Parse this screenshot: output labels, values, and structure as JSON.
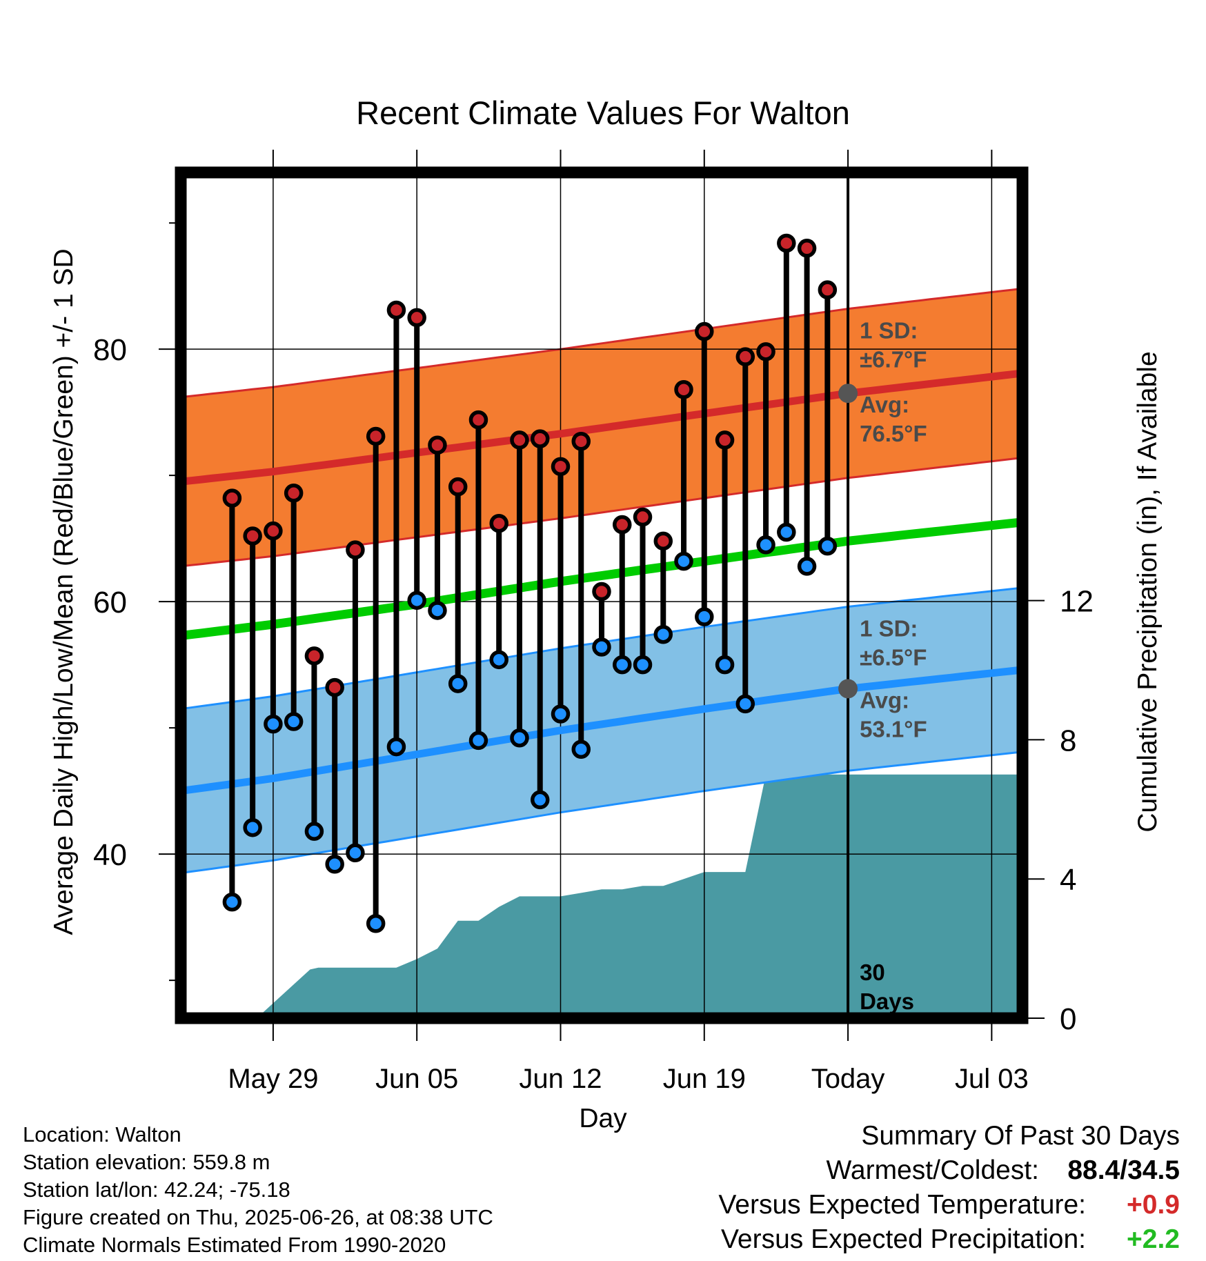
{
  "chart_data": {
    "type": "line",
    "title": "Recent Climate Values For Walton",
    "xlabel": "Day",
    "ylabel": "Average Daily High/Low/Mean (Red/Blue/Green) +/- 1 SD",
    "y2label": "Cumulative Precipitation (in), If Available",
    "ylim": [
      27,
      94
    ],
    "y2lim": [
      0,
      24.3
    ],
    "xlim": [
      -4.5,
      36.5
    ],
    "x_ticks": [
      {
        "x": 0,
        "label": "May 29"
      },
      {
        "x": 7,
        "label": "Jun 05"
      },
      {
        "x": 14,
        "label": "Jun 12"
      },
      {
        "x": 21,
        "label": "Jun 19"
      },
      {
        "x": 28,
        "label": "Today"
      },
      {
        "x": 35,
        "label": "Jul 03"
      }
    ],
    "y_ticks": [
      {
        "value": 40,
        "label": "40"
      },
      {
        "value": 60,
        "label": "60"
      },
      {
        "value": 80,
        "label": "80"
      }
    ],
    "y_minor_ticks": [
      30,
      50,
      70,
      90
    ],
    "y2_ticks": [
      {
        "value": 0,
        "label": "0"
      },
      {
        "value": 4,
        "label": "4"
      },
      {
        "value": 8,
        "label": "8"
      },
      {
        "value": 12,
        "label": "12"
      }
    ],
    "grid": true,
    "today_x": 28,
    "normals": {
      "x": [
        -4.5,
        0,
        7,
        14,
        21,
        28,
        36.5
      ],
      "high_avg": [
        69.5,
        70.3,
        71.8,
        73.3,
        74.9,
        76.5,
        78.1
      ],
      "high_sd": 6.7,
      "low_avg": [
        45.0,
        46.0,
        47.9,
        49.8,
        51.5,
        53.1,
        54.6
      ],
      "low_sd": 6.5,
      "mean_avg": [
        57.3,
        58.2,
        59.8,
        61.6,
        63.2,
        64.8,
        66.3
      ]
    },
    "series": [
      {
        "name": "High",
        "x": [
          -2,
          -1,
          0,
          1,
          2,
          3,
          4,
          5,
          6,
          7,
          8,
          9,
          10,
          11,
          12,
          13,
          14,
          15,
          16,
          17,
          18,
          19,
          20,
          21,
          22,
          23,
          24,
          25,
          26,
          27
        ],
        "values": [
          68.2,
          65.2,
          65.6,
          68.6,
          55.7,
          53.2,
          64.1,
          73.1,
          83.1,
          82.5,
          72.4,
          69.1,
          74.4,
          66.2,
          72.8,
          72.9,
          70.7,
          72.7,
          60.8,
          66.1,
          66.7,
          64.8,
          76.8,
          81.4,
          72.8,
          79.4,
          79.8,
          88.4,
          88.0,
          84.7
        ]
      },
      {
        "name": "Low",
        "x": [
          -2,
          -1,
          0,
          1,
          2,
          3,
          4,
          5,
          6,
          7,
          8,
          9,
          10,
          11,
          12,
          13,
          14,
          15,
          16,
          17,
          18,
          19,
          20,
          21,
          22,
          23,
          24,
          25,
          26,
          27
        ],
        "values": [
          36.2,
          42.1,
          50.3,
          50.5,
          41.8,
          39.2,
          40.1,
          34.5,
          48.5,
          60.1,
          59.3,
          53.5,
          49.0,
          55.4,
          49.2,
          44.3,
          51.1,
          48.3,
          56.4,
          55.0,
          55.0,
          57.4,
          63.2,
          58.8,
          55.0,
          51.9,
          64.5,
          65.5,
          62.8,
          64.4
        ]
      }
    ],
    "precip": {
      "x": [
        -1.2,
        -0.8,
        1.8,
        2.2,
        5,
        6,
        7,
        8,
        9,
        10,
        11,
        12,
        14,
        15,
        16,
        17,
        18,
        19,
        20,
        21,
        22,
        23,
        24,
        25,
        36.5
      ],
      "values": [
        0,
        0,
        1.4,
        1.45,
        1.45,
        1.45,
        1.7,
        2.0,
        2.8,
        2.8,
        3.2,
        3.5,
        3.5,
        3.6,
        3.7,
        3.7,
        3.8,
        3.8,
        4.0,
        4.2,
        4.2,
        4.2,
        7.0,
        7.0,
        7.0
      ]
    },
    "annotations": {
      "high_sd_label": "1 SD:",
      "high_sd_value": "±6.7°F",
      "high_avg_label": "Avg:",
      "high_avg_value": "76.5°F",
      "low_sd_label": "1 SD:",
      "low_sd_value": "±6.5°F",
      "low_avg_label": "Avg:",
      "low_avg_value": "53.1°F",
      "days_number": "30",
      "days_word": "Days"
    },
    "colors": {
      "high_band": "#f47c30",
      "high_line": "#d42a2a",
      "low_band": "#82c0e6",
      "low_line": "#1e90ff",
      "mean_line": "#00cc00",
      "precip": "#4a9aa3",
      "high_marker": "#c8242a",
      "low_marker": "#1e90ff",
      "annotation_text": "#4a4a4a"
    }
  },
  "info": {
    "location": "Location: Walton",
    "elevation": "Station elevation: 559.8 m",
    "latlon": "Station lat/lon: 42.24; -75.18",
    "created": "Figure created on Thu, 2025-06-26, at 08:38 UTC",
    "normals": "Climate Normals Estimated From 1990-2020"
  },
  "summary": {
    "title": "Summary Of Past 30 Days",
    "warmest_label": "Warmest/Coldest:",
    "warmest_value": "88.4/34.5",
    "temp_label": "Versus Expected Temperature:",
    "temp_value": "+0.9",
    "temp_color": "#d42a2a",
    "precip_label": "Versus Expected Precipitation:",
    "precip_value": "+2.2",
    "precip_color": "#22bb22"
  }
}
